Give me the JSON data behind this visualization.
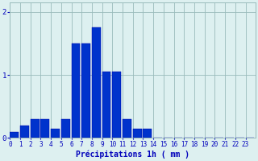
{
  "categories": [
    0,
    1,
    2,
    3,
    4,
    5,
    6,
    7,
    8,
    9,
    10,
    11,
    12,
    13,
    14,
    15,
    16,
    17,
    18,
    19,
    20,
    21,
    22,
    23
  ],
  "values": [
    0.1,
    0.2,
    0.3,
    0.3,
    0.15,
    0.3,
    1.5,
    1.5,
    1.75,
    1.05,
    1.05,
    0.3,
    0.15,
    0.15,
    0.0,
    0.0,
    0.0,
    0.0,
    0.0,
    0.0,
    0.0,
    0.0,
    0.0,
    0.0
  ],
  "bar_color": "#0033cc",
  "bg_color": "#ddf0f0",
  "grid_color": "#99bbbb",
  "text_color": "#0000bb",
  "xlabel": "Précipitations 1h ( mm )",
  "ylim": [
    0,
    2.15
  ],
  "yticks": [
    0,
    1,
    2
  ],
  "xlabel_fontsize": 7,
  "tick_fontsize": 5.5
}
